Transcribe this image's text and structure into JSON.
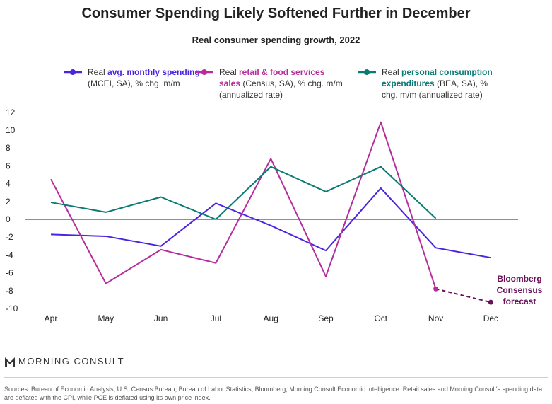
{
  "header": {
    "title": "Consumer Spending Likely Softened Further in December",
    "subtitle": "Real consumer spending growth, 2022"
  },
  "legend": [
    {
      "prefix": "Real ",
      "bold": "avg. monthly spending",
      "suffix": " (MCEI, SA), % chg. m/m",
      "color": "#4a24e0"
    },
    {
      "prefix": "Real ",
      "bold": "retail & food services sales",
      "suffix": " (Census, SA), % chg. m/m (annualized rate)",
      "color": "#b52d9d"
    },
    {
      "prefix": "Real ",
      "bold": "personal consumption expenditures",
      "suffix": " (BEA, SA), % chg. m/m (annualized rate)",
      "color": "#0a7a74"
    }
  ],
  "chart_data": {
    "type": "line",
    "title": "Consumer Spending Likely Softened Further in December",
    "subtitle": "Real consumer spending growth, 2022",
    "categories": [
      "Apr",
      "May",
      "Jun",
      "Jul",
      "Aug",
      "Sep",
      "Oct",
      "Nov",
      "Dec"
    ],
    "yticks": [
      "12",
      "10",
      "8",
      "6",
      "4",
      "2",
      "0",
      "-2",
      "-4",
      "-6",
      "-8",
      "-10"
    ],
    "ylim": [
      -10,
      12
    ],
    "series": [
      {
        "name": "Real avg. monthly spending (MCEI, SA), % chg. m/m",
        "color": "#4a24e0",
        "values": [
          -1.7,
          -1.9,
          -3.0,
          1.8,
          -0.7,
          -3.5,
          3.5,
          -3.2,
          -4.3
        ]
      },
      {
        "name": "Real retail & food services sales (Census, SA), % chg. m/m (annualized rate)",
        "color": "#b52d9d",
        "values": [
          4.5,
          -7.2,
          -3.4,
          -4.9,
          6.8,
          -6.4,
          10.9,
          -7.8,
          null
        ]
      },
      {
        "name": "Real personal consumption expenditures (BEA, SA), % chg. m/m (annualized rate)",
        "color": "#0a7a74",
        "values": [
          1.9,
          0.8,
          2.5,
          0.0,
          5.9,
          3.1,
          5.9,
          0.1,
          null
        ]
      }
    ],
    "forecast": {
      "from_category": "Nov",
      "to_category": "Dec",
      "from_value": -7.8,
      "value": -9.3,
      "color": "#6a0f5a"
    },
    "annotation": [
      "Bloomberg",
      "Consensus",
      "forecast"
    ]
  },
  "logo": {
    "text": "MORNING CONSULT"
  },
  "footer": {
    "text": "Sources: Bureau of Economic Analysis, U.S. Census Bureau, Bureau of Labor Statistics, Bloomberg, Morning Consult Economic Intelligence. Retail sales and Morning Consult's spending data are deflated with the CPI, while PCE is deflated using its own price index."
  }
}
